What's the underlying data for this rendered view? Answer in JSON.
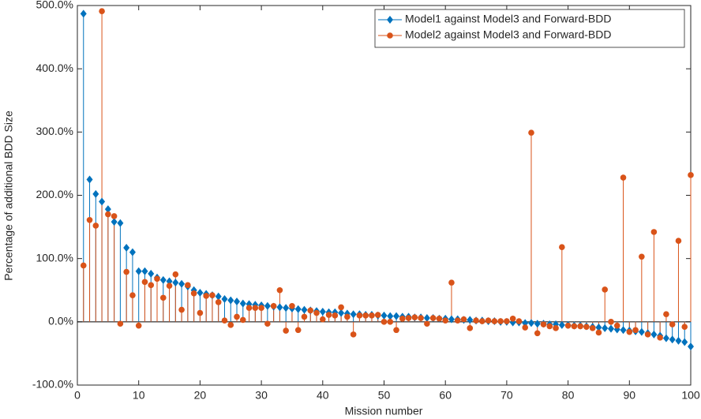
{
  "chart_data": {
    "type": "stem",
    "xlabel": "Mission number",
    "ylabel": "Percentage of additional BDD Size",
    "x": [
      1,
      2,
      3,
      4,
      5,
      6,
      7,
      8,
      9,
      10,
      11,
      12,
      13,
      14,
      15,
      16,
      17,
      18,
      19,
      20,
      21,
      22,
      23,
      24,
      25,
      26,
      27,
      28,
      29,
      30,
      31,
      32,
      33,
      34,
      35,
      36,
      37,
      38,
      39,
      40,
      41,
      42,
      43,
      44,
      45,
      46,
      47,
      48,
      49,
      50,
      51,
      52,
      53,
      54,
      55,
      56,
      57,
      58,
      59,
      60,
      61,
      62,
      63,
      64,
      65,
      66,
      67,
      68,
      69,
      70,
      71,
      72,
      73,
      74,
      75,
      76,
      77,
      78,
      79,
      80,
      81,
      82,
      83,
      84,
      85,
      86,
      87,
      88,
      89,
      90,
      91,
      92,
      93,
      94,
      95,
      96,
      97,
      98,
      99,
      100
    ],
    "series": [
      {
        "name": "Model1 against Model3 and Forward-BDD",
        "color": "#0072bd",
        "marker": "diamond",
        "values": [
          487,
          225,
          202,
          190,
          178,
          158,
          156,
          117,
          110,
          80,
          80,
          76,
          70,
          66,
          64,
          62,
          60,
          56,
          50,
          46,
          44,
          42,
          40,
          36,
          34,
          32,
          29,
          28,
          27,
          26,
          25,
          24,
          23,
          22,
          21,
          20,
          19,
          18,
          17,
          16,
          15,
          15,
          14,
          13,
          12,
          12,
          11,
          11,
          10,
          10,
          9,
          9,
          8,
          8,
          7,
          7,
          6,
          6,
          5,
          5,
          4,
          4,
          3,
          3,
          2,
          2,
          1,
          1,
          0,
          0,
          -1,
          -1,
          -2,
          -2,
          -3,
          -3,
          -4,
          -4,
          -5,
          -5,
          -6,
          -6,
          -7,
          -8,
          -9,
          -10,
          -11,
          -12,
          -13,
          -14,
          -15,
          -16,
          -18,
          -20,
          -22,
          -26,
          -28,
          -30,
          -32,
          -39
        ]
      },
      {
        "name": "Model2 against Model3 and Forward-BDD",
        "color": "#d95319",
        "marker": "circle",
        "values": [
          89,
          161,
          152,
          491,
          170,
          167,
          -3,
          79,
          42,
          -6,
          63,
          58,
          68,
          38,
          57,
          75,
          19,
          58,
          45,
          14,
          41,
          42,
          31,
          2,
          -5,
          8,
          3,
          22,
          22,
          22,
          -3,
          25,
          50,
          -14,
          25,
          -13,
          8,
          18,
          14,
          4,
          11,
          10,
          23,
          8,
          -20,
          10,
          10,
          10,
          11,
          0,
          0,
          -13,
          5,
          6,
          7,
          6,
          -3,
          6,
          5,
          2,
          62,
          2,
          4,
          -10,
          2,
          1,
          2,
          1,
          1,
          1,
          5,
          1,
          -9,
          299,
          -18,
          -4,
          -7,
          -10,
          118,
          -6,
          -7,
          -7,
          -8,
          -10,
          -17,
          51,
          0,
          -6,
          228,
          -16,
          -13,
          103,
          -20,
          142,
          -25,
          12,
          -4,
          128,
          -8,
          232
        ]
      }
    ],
    "xlim": [
      0,
      100
    ],
    "xticks": [
      0,
      10,
      20,
      30,
      40,
      50,
      60,
      70,
      80,
      90,
      100
    ],
    "ylim": [
      -100,
      500
    ],
    "yticks": [
      {
        "value": -100,
        "label": "-100.0%"
      },
      {
        "value": 0,
        "label": "0.0%"
      },
      {
        "value": 100,
        "label": "100.0%"
      },
      {
        "value": 200,
        "label": "200.0%"
      },
      {
        "value": 300,
        "label": "300.0%"
      },
      {
        "value": 400,
        "label": "400.0%"
      },
      {
        "value": 500,
        "label": "500.0%"
      }
    ],
    "legend": "northeast"
  }
}
